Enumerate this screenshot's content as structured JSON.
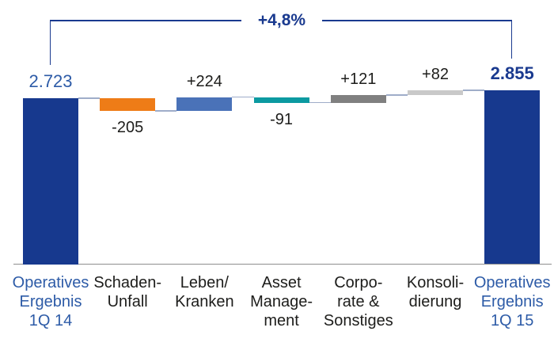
{
  "chart_data": {
    "type": "bar",
    "subtype": "waterfall",
    "title": "",
    "bracket": {
      "label": "+4,8%",
      "from_index": 0,
      "to_index": 6
    },
    "items": [
      {
        "id": "operatives-ergebnis-1q14",
        "label_lines": [
          "Operatives",
          "Ergebnis",
          "1Q 14"
        ],
        "kind": "total",
        "value": 2723,
        "display_value": "2.723",
        "color": "#17398e",
        "value_style": "normal"
      },
      {
        "id": "schaden-unfall",
        "label_lines": [
          "Schaden-",
          "Unfall"
        ],
        "kind": "delta",
        "value": -205,
        "display_value": "-205",
        "color": "#ee7c17",
        "value_style": "normal"
      },
      {
        "id": "leben-kranken",
        "label_lines": [
          "Leben/",
          "Kranken"
        ],
        "kind": "delta",
        "value": 224,
        "display_value": "+224",
        "color": "#4a72b8",
        "value_style": "normal"
      },
      {
        "id": "asset-management",
        "label_lines": [
          "Asset",
          "Manage-",
          "ment"
        ],
        "kind": "delta",
        "value": -91,
        "display_value": "-91",
        "color": "#0c9aa1",
        "value_style": "normal"
      },
      {
        "id": "corporate-sonstiges",
        "label_lines": [
          "Corpo-",
          "rate &",
          "Sonstiges"
        ],
        "kind": "delta",
        "value": 121,
        "display_value": "+121",
        "color": "#808080",
        "value_style": "normal"
      },
      {
        "id": "konsolidierung",
        "label_lines": [
          "Konsoli-",
          "dierung"
        ],
        "kind": "delta",
        "value": 82,
        "display_value": "+82",
        "color": "#c9c9c9",
        "value_style": "normal"
      },
      {
        "id": "operatives-ergebnis-1q15",
        "label_lines": [
          "Operatives",
          "Ergebnis",
          "1Q 15"
        ],
        "kind": "total",
        "value": 2855,
        "display_value": "2.855",
        "color": "#17398e",
        "value_style": "bold"
      }
    ],
    "colors": {
      "bracket": "#1a3a8f",
      "total_value_left": "#2d5ba7",
      "total_value_right": "#1a3a8f",
      "delta_value": "#1d1d1b",
      "total_axis_label": "#2d5ba7",
      "delta_axis_label": "#1d1d1b",
      "connector": "#9fadc9",
      "baseline": "#8f8f8f"
    },
    "axis": {
      "baseline_visible": true,
      "gridlines": false,
      "legend": false
    }
  }
}
